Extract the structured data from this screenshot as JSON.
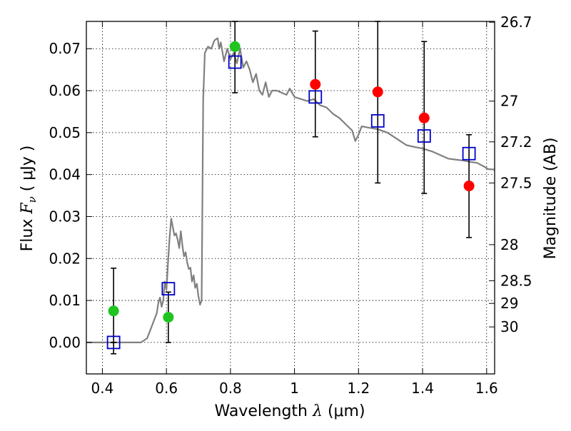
{
  "chart_data": {
    "type": "scatter",
    "xlabel_prefix": "Wavelength",
    "xlabel_symbol": "λ",
    "xlabel_unit": "(μm)",
    "ylabel_prefix": "Flux",
    "ylabel_symbol": "F",
    "ylabel_subscript": "ν",
    "ylabel_unit": "( μJy )",
    "y2label": "Magnitude (AB)",
    "xlim": [
      0.35,
      1.625
    ],
    "ylim": [
      -0.0075,
      0.0765
    ],
    "x_ticks": [
      {
        "value": 0.4,
        "label": "0.4"
      },
      {
        "value": 0.6,
        "label": "0.6"
      },
      {
        "value": 0.8,
        "label": "0.8"
      },
      {
        "value": 1.0,
        "label": "1"
      },
      {
        "value": 1.2,
        "label": "1.2"
      },
      {
        "value": 1.4,
        "label": "1.4"
      },
      {
        "value": 1.6,
        "label": "1.6"
      }
    ],
    "y_ticks": [
      {
        "value": 0.0,
        "label": "0.00"
      },
      {
        "value": 0.01,
        "label": "0.01"
      },
      {
        "value": 0.02,
        "label": "0.02"
      },
      {
        "value": 0.03,
        "label": "0.03"
      },
      {
        "value": 0.04,
        "label": "0.04"
      },
      {
        "value": 0.05,
        "label": "0.05"
      },
      {
        "value": 0.06,
        "label": "0.06"
      },
      {
        "value": 0.07,
        "label": "0.07"
      }
    ],
    "y2_ticks": [
      {
        "flux": 0.0763,
        "label": "26.7"
      },
      {
        "flux": 0.0575,
        "label": "27"
      },
      {
        "flux": 0.0478,
        "label": "27.2"
      },
      {
        "flux": 0.038,
        "label": "27.5"
      },
      {
        "flux": 0.0233,
        "label": "28"
      },
      {
        "flux": 0.0147,
        "label": "28.5"
      },
      {
        "flux": 0.0093,
        "label": "29"
      },
      {
        "flux": 0.0037,
        "label": "30"
      }
    ],
    "grid": true,
    "colors": {
      "green": "#1fc41f",
      "red": "#ff0000",
      "model_box": "#0000cc",
      "sed": "#808080",
      "errorbar": "#000000",
      "grid": "#000000"
    },
    "observed": [
      {
        "x": 0.435,
        "y": 0.0075,
        "lo": 0.0,
        "hi": 0.0177,
        "color": "green"
      },
      {
        "x": 0.606,
        "y": 0.006,
        "lo": 0.0,
        "hi": 0.012,
        "color": "green"
      },
      {
        "x": 0.814,
        "y": 0.0705,
        "lo": 0.0595,
        "hi": 0.0765,
        "color": "green"
      },
      {
        "x": 1.065,
        "y": 0.0615,
        "lo": 0.049,
        "hi": 0.0742,
        "color": "red"
      },
      {
        "x": 1.26,
        "y": 0.0597,
        "lo": 0.038,
        "hi": 0.0765,
        "color": "red"
      },
      {
        "x": 1.405,
        "y": 0.0535,
        "lo": 0.0355,
        "hi": 0.0717,
        "color": "red"
      },
      {
        "x": 1.545,
        "y": 0.0373,
        "lo": 0.025,
        "hi": 0.0495,
        "color": "red"
      }
    ],
    "model": [
      {
        "x": 0.435,
        "y": 0.0,
        "lo": -0.0027
      },
      {
        "x": 0.606,
        "y": 0.0128,
        "lo": 0.0
      },
      {
        "x": 0.814,
        "y": 0.0668,
        "lo": 0.0595
      },
      {
        "x": 1.065,
        "y": 0.0585,
        "lo": 0.049
      },
      {
        "x": 1.26,
        "y": 0.0528,
        "lo": 0.038
      },
      {
        "x": 1.405,
        "y": 0.0492,
        "lo": 0.0355
      },
      {
        "x": 1.545,
        "y": 0.045,
        "lo": 0.025
      }
    ],
    "sed": [
      [
        0.35,
        0.0
      ],
      [
        0.52,
        0.0
      ],
      [
        0.53,
        0.0005
      ],
      [
        0.54,
        0.001
      ],
      [
        0.55,
        0.003
      ],
      [
        0.56,
        0.005
      ],
      [
        0.57,
        0.007
      ],
      [
        0.575,
        0.0095
      ],
      [
        0.58,
        0.0107
      ],
      [
        0.585,
        0.0085
      ],
      [
        0.59,
        0.01
      ],
      [
        0.595,
        0.0145
      ],
      [
        0.6,
        0.0125
      ],
      [
        0.605,
        0.019
      ],
      [
        0.61,
        0.025
      ],
      [
        0.615,
        0.0295
      ],
      [
        0.62,
        0.0275
      ],
      [
        0.625,
        0.0255
      ],
      [
        0.63,
        0.026
      ],
      [
        0.635,
        0.0245
      ],
      [
        0.64,
        0.0225
      ],
      [
        0.645,
        0.0265
      ],
      [
        0.65,
        0.023
      ],
      [
        0.655,
        0.0205
      ],
      [
        0.66,
        0.0215
      ],
      [
        0.665,
        0.019
      ],
      [
        0.67,
        0.0175
      ],
      [
        0.675,
        0.0178
      ],
      [
        0.68,
        0.0145
      ],
      [
        0.685,
        0.016
      ],
      [
        0.69,
        0.013
      ],
      [
        0.695,
        0.014
      ],
      [
        0.7,
        0.011
      ],
      [
        0.705,
        0.009
      ],
      [
        0.71,
        0.01
      ],
      [
        0.712,
        0.03
      ],
      [
        0.715,
        0.058
      ],
      [
        0.72,
        0.069
      ],
      [
        0.73,
        0.0705
      ],
      [
        0.74,
        0.07
      ],
      [
        0.75,
        0.072
      ],
      [
        0.76,
        0.0725
      ],
      [
        0.765,
        0.07
      ],
      [
        0.77,
        0.0715
      ],
      [
        0.78,
        0.067
      ],
      [
        0.79,
        0.07
      ],
      [
        0.8,
        0.0675
      ],
      [
        0.81,
        0.069
      ],
      [
        0.82,
        0.0665
      ],
      [
        0.83,
        0.07
      ],
      [
        0.84,
        0.0655
      ],
      [
        0.85,
        0.067
      ],
      [
        0.86,
        0.065
      ],
      [
        0.87,
        0.062
      ],
      [
        0.88,
        0.064
      ],
      [
        0.89,
        0.06
      ],
      [
        0.9,
        0.059
      ],
      [
        0.91,
        0.062
      ],
      [
        0.92,
        0.0585
      ],
      [
        0.93,
        0.06
      ],
      [
        0.945,
        0.06
      ],
      [
        0.96,
        0.0595
      ],
      [
        0.975,
        0.059
      ],
      [
        0.985,
        0.0605
      ],
      [
        1.0,
        0.0585
      ],
      [
        1.02,
        0.058
      ],
      [
        1.04,
        0.0575
      ],
      [
        1.06,
        0.058
      ],
      [
        1.08,
        0.0565
      ],
      [
        1.1,
        0.056
      ],
      [
        1.12,
        0.0545
      ],
      [
        1.14,
        0.0535
      ],
      [
        1.16,
        0.052
      ],
      [
        1.18,
        0.0505
      ],
      [
        1.19,
        0.048
      ],
      [
        1.2,
        0.0495
      ],
      [
        1.21,
        0.0515
      ],
      [
        1.23,
        0.0512
      ],
      [
        1.26,
        0.0508
      ],
      [
        1.29,
        0.05
      ],
      [
        1.32,
        0.0485
      ],
      [
        1.35,
        0.047
      ],
      [
        1.38,
        0.0465
      ],
      [
        1.4,
        0.0462
      ],
      [
        1.43,
        0.0455
      ],
      [
        1.46,
        0.0445
      ],
      [
        1.48,
        0.0438
      ],
      [
        1.5,
        0.0436
      ],
      [
        1.53,
        0.0433
      ],
      [
        1.55,
        0.043
      ],
      [
        1.57,
        0.0428
      ],
      [
        1.59,
        0.042
      ],
      [
        1.605,
        0.0413
      ],
      [
        1.625,
        0.0412
      ]
    ]
  }
}
